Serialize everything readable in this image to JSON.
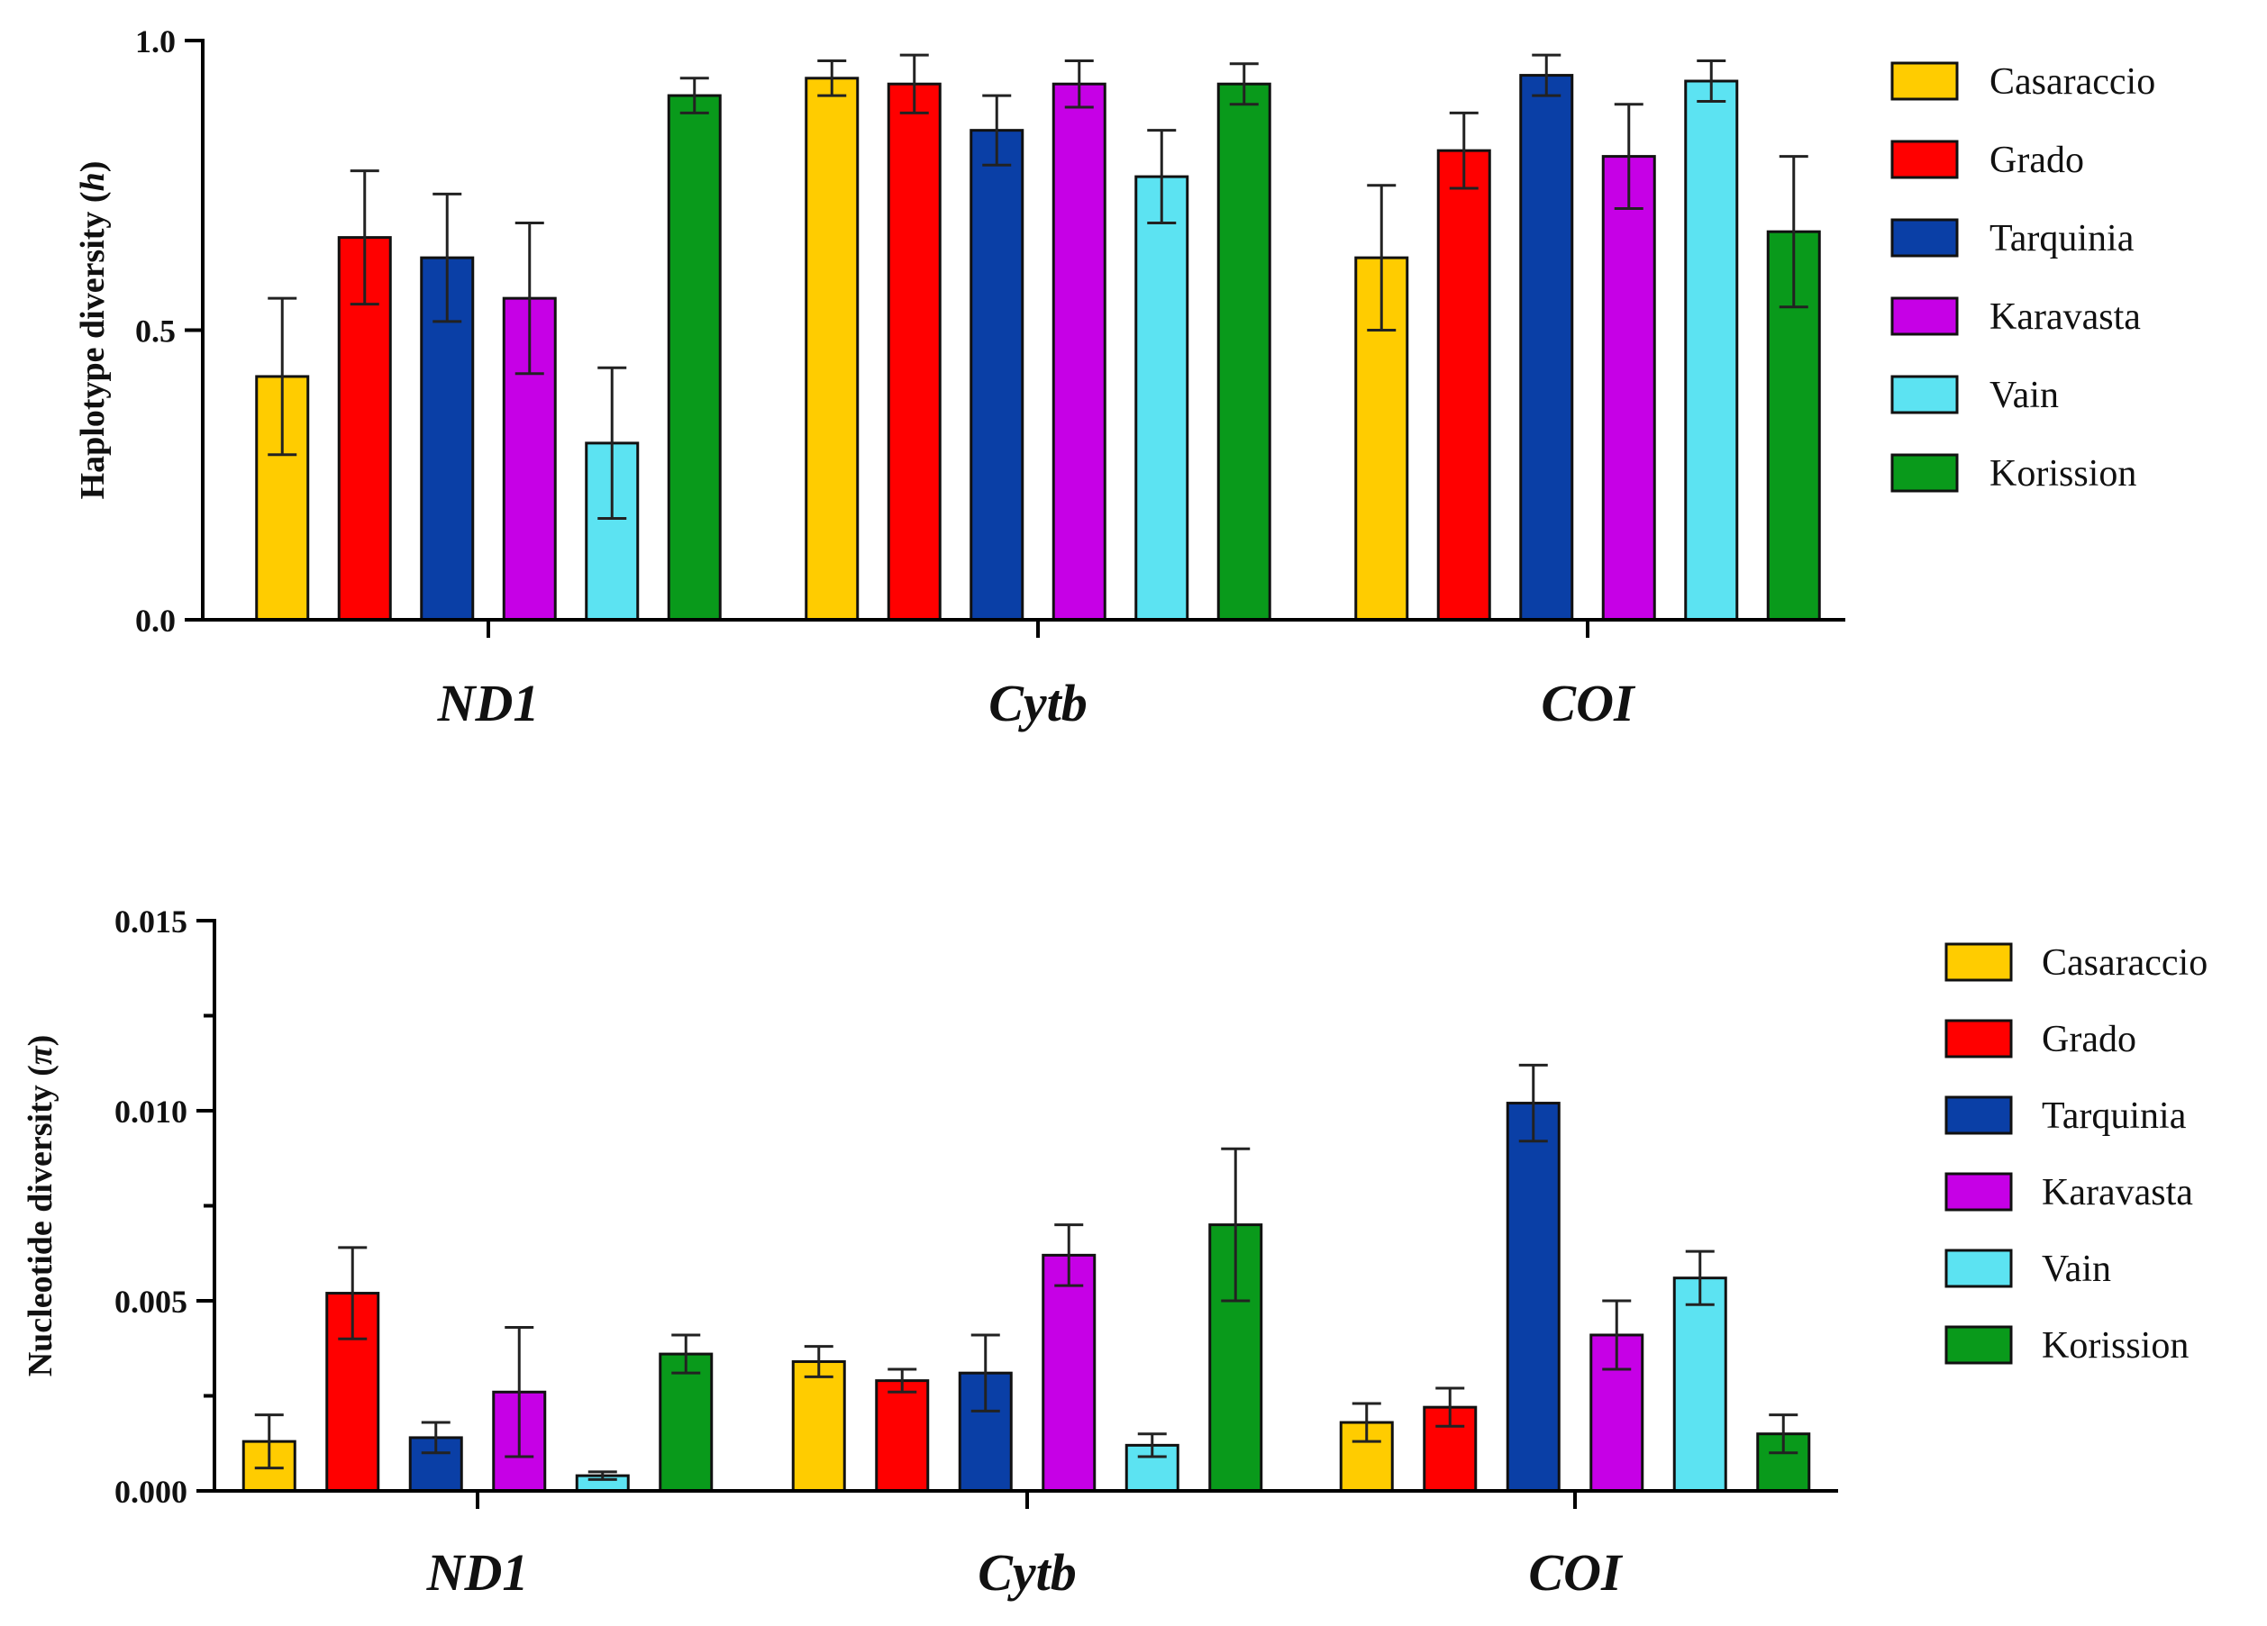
{
  "chart_data": [
    {
      "type": "bar",
      "title": "",
      "xlabel": "",
      "ylabel": "Haplotype diversity (h)",
      "ylabel_prefix": "Haplotype diversity (",
      "ylabel_symbol": "h",
      "ylabel_suffix": ")",
      "ylim": [
        0,
        1.0
      ],
      "yticks": [
        0.0,
        0.5,
        1.0
      ],
      "ytick_labels": [
        "0.0",
        "0.5",
        "1.0"
      ],
      "grid": false,
      "legend_position": "right",
      "categories": [
        "ND1",
        "Cytb",
        "COI"
      ],
      "series": [
        {
          "name": "Casaraccio",
          "color": "#FFCC00",
          "values": [
            0.42,
            0.935,
            0.625
          ],
          "errors": [
            0.135,
            0.03,
            0.125
          ]
        },
        {
          "name": "Grado",
          "color": "#FF0000",
          "values": [
            0.66,
            0.925,
            0.81
          ],
          "errors": [
            0.115,
            0.05,
            0.065
          ]
        },
        {
          "name": "Tarquinia",
          "color": "#0A3FA6",
          "values": [
            0.625,
            0.845,
            0.94
          ],
          "errors": [
            0.11,
            0.06,
            0.035
          ]
        },
        {
          "name": "Karavasta",
          "color": "#C600E6",
          "values": [
            0.555,
            0.925,
            0.8
          ],
          "errors": [
            0.13,
            0.04,
            0.09
          ]
        },
        {
          "name": "Vain",
          "color": "#5CE3F2",
          "values": [
            0.305,
            0.765,
            0.93
          ],
          "errors": [
            0.13,
            0.08,
            0.035
          ]
        },
        {
          "name": "Korission",
          "color": "#099A1B",
          "values": [
            0.905,
            0.925,
            0.67
          ],
          "errors": [
            0.03,
            0.035,
            0.13
          ]
        }
      ]
    },
    {
      "type": "bar",
      "title": "",
      "xlabel": "",
      "ylabel": "Nucleotide diversity (π)",
      "ylabel_prefix": "Nucleotide diversity (",
      "ylabel_symbol": "π",
      "ylabel_suffix": ")",
      "ylim": [
        0,
        0.015
      ],
      "yticks": [
        0.0,
        0.005,
        0.01,
        0.015
      ],
      "ytick_labels": [
        "0.000",
        "0.005",
        "0.010",
        "0.015"
      ],
      "minor_yticks": [
        0.0025,
        0.0075,
        0.0125
      ],
      "grid": false,
      "legend_position": "right",
      "categories": [
        "ND1",
        "Cytb",
        "COI"
      ],
      "series": [
        {
          "name": "Casaraccio",
          "color": "#FFCC00",
          "values": [
            0.0013,
            0.0034,
            0.0018
          ],
          "errors": [
            0.0007,
            0.0004,
            0.0005
          ]
        },
        {
          "name": "Grado",
          "color": "#FF0000",
          "values": [
            0.0052,
            0.0029,
            0.0022
          ],
          "errors": [
            0.0012,
            0.0003,
            0.0005
          ]
        },
        {
          "name": "Tarquinia",
          "color": "#0A3FA6",
          "values": [
            0.0014,
            0.0031,
            0.0102
          ],
          "errors": [
            0.0004,
            0.001,
            0.001
          ]
        },
        {
          "name": "Karavasta",
          "color": "#C600E6",
          "values": [
            0.0026,
            0.0062,
            0.0041
          ],
          "errors": [
            0.0017,
            0.0008,
            0.0009
          ]
        },
        {
          "name": "Vain",
          "color": "#5CE3F2",
          "values": [
            0.0004,
            0.0012,
            0.0056
          ],
          "errors": [
            0.0001,
            0.0003,
            0.0007
          ]
        },
        {
          "name": "Korission",
          "color": "#099A1B",
          "values": [
            0.0036,
            0.007,
            0.0015
          ],
          "errors": [
            0.0005,
            0.002,
            0.0005
          ]
        }
      ]
    }
  ]
}
